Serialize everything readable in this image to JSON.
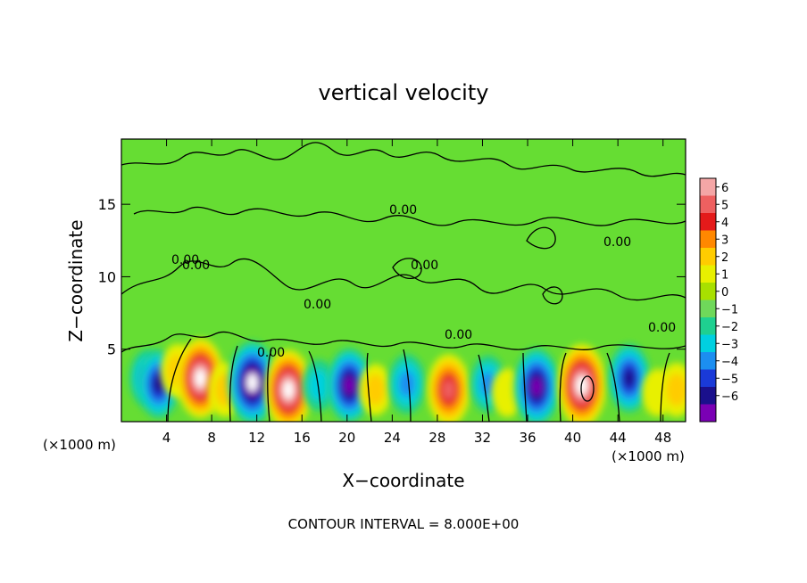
{
  "chart_data": {
    "type": "heatmap",
    "title": "vertical velocity",
    "xlabel": "X−coordinate",
    "ylabel": "Z−coordinate",
    "x_unit_left": "(×1000 m)",
    "x_unit_right": "(×1000 m)",
    "footer": "CONTOUR INTERVAL = 8.000E+00",
    "xlim": [
      0,
      50
    ],
    "ylim": [
      0,
      19.5
    ],
    "x_ticks": [
      "4",
      "8",
      "12",
      "16",
      "20",
      "24",
      "28",
      "32",
      "36",
      "40",
      "44",
      "48"
    ],
    "y_ticks": [
      "5",
      "10",
      "15"
    ],
    "contour_labels": [
      "0.00",
      "0.00",
      "0.00",
      "0.00",
      "0.00",
      "0.00",
      "0.00",
      "0.00",
      "0.00"
    ],
    "colorbar": {
      "labels": [
        "6",
        "5",
        "4",
        "3",
        "2",
        "1",
        "0",
        "−1",
        "−2",
        "−3",
        "−4",
        "−5",
        "−6"
      ],
      "colors": [
        "#f4a6a6",
        "#ee6060",
        "#e41a1a",
        "#ff8800",
        "#ffcc00",
        "#e8f000",
        "#a8e000",
        "#6fd85a",
        "#1fd090",
        "#00d0e0",
        "#1c8ef0",
        "#1a3ad8",
        "#1a108c",
        "#7a00b4"
      ]
    },
    "background_color": "#66dd33",
    "cells": [
      {
        "x": 2.3,
        "z": 3.0,
        "w": -2.5
      },
      {
        "x": 3.3,
        "z": 2.6,
        "w": -4.5
      },
      {
        "x": 5.0,
        "z": 3.5,
        "w": 2.0
      },
      {
        "x": 7.0,
        "z": 3.0,
        "w": 6.5
      },
      {
        "x": 9.2,
        "z": 2.2,
        "w": 2.0
      },
      {
        "x": 11.6,
        "z": 2.7,
        "w": -7.0
      },
      {
        "x": 14.8,
        "z": 2.2,
        "w": 6.5
      },
      {
        "x": 17.5,
        "z": 2.5,
        "w": -1.5
      },
      {
        "x": 20.2,
        "z": 2.5,
        "w": -5.5
      },
      {
        "x": 22.5,
        "z": 2.2,
        "w": 1.5
      },
      {
        "x": 25.3,
        "z": 2.6,
        "w": -3.0
      },
      {
        "x": 29.0,
        "z": 2.2,
        "w": 5.0
      },
      {
        "x": 32.5,
        "z": 2.6,
        "w": -2.5
      },
      {
        "x": 34.2,
        "z": 2.0,
        "w": 1.0
      },
      {
        "x": 36.8,
        "z": 2.4,
        "w": -6.0
      },
      {
        "x": 40.8,
        "z": 2.5,
        "w": 7.0
      },
      {
        "x": 45.0,
        "z": 3.0,
        "w": -4.5
      },
      {
        "x": 47.5,
        "z": 2.0,
        "w": 0.8
      },
      {
        "x": 49.2,
        "z": 2.2,
        "w": 2.0
      }
    ]
  }
}
